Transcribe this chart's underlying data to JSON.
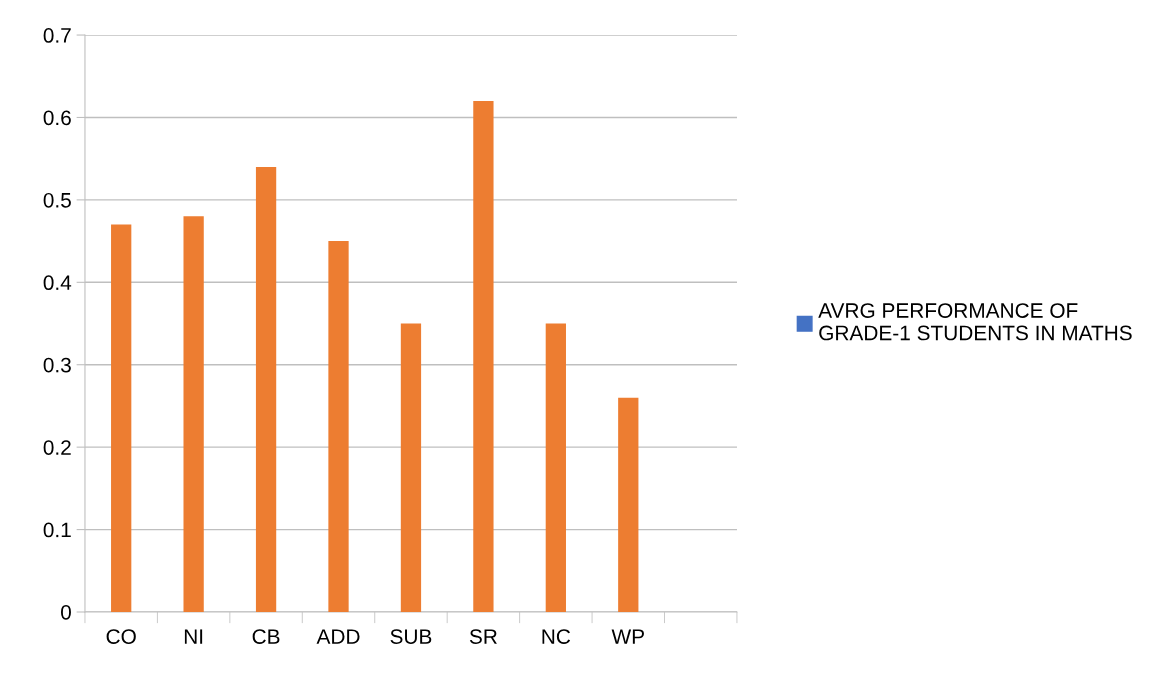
{
  "chart_data": {
    "type": "bar",
    "categories": [
      "CO",
      "NI",
      "CB",
      "ADD",
      "SUB",
      "SR",
      "NC",
      "WP",
      null
    ],
    "series": [
      {
        "name": "AVRG PERFORMANCE OF\nGRADE-1 STUDENTS IN MATHS",
        "color": "#4472c4",
        "colors": [
          "#ed7d31",
          "#ed7d31",
          "#ed7d31",
          "#ed7d31",
          "#ed7d31",
          "#ed7d31",
          "#ed7d31",
          "#ed7d31",
          "#ed7d31"
        ],
        "values": [
          0.47,
          0.48,
          0.54,
          0.45,
          0.35,
          0.62,
          0.35,
          0.26,
          null
        ]
      }
    ],
    "ylim": [
      0,
      0.7
    ],
    "yticks": [
      0,
      0.1,
      0.2,
      0.3,
      0.4,
      0.5,
      0.6,
      0.7
    ],
    "grid": "y",
    "legend": "right"
  }
}
